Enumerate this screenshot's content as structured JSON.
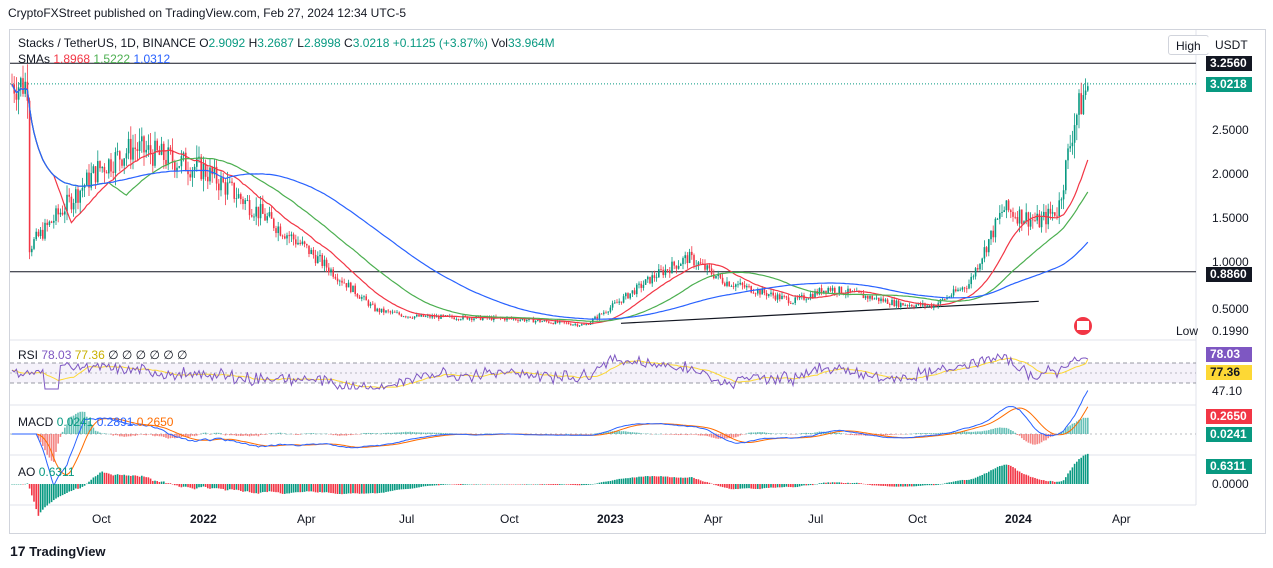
{
  "header": {
    "published": "CryptoFXStreet published on TradingView.com, Feb 27, 2024 12:34 UTC-5"
  },
  "symbol": {
    "name": "Stacks / TetherUS, 1D, BINANCE",
    "o_label": "O",
    "o": "2.9092",
    "h_label": "H",
    "h": "3.2687",
    "l_label": "L",
    "l": "2.8998",
    "c_label": "C",
    "c": "3.0218",
    "change": "+0.1125 (+3.87%)",
    "vol_label": "Vol",
    "vol": "33.964M"
  },
  "smas": {
    "label": "SMAs",
    "v1": "1.8968",
    "v2": "1.5222",
    "v3": "1.0312"
  },
  "buttons": {
    "high": "High",
    "currency": "USDT"
  },
  "price_axis": {
    "ticks": [
      "2.5000",
      "2.0000",
      "1.5000",
      "1.0000",
      "0.5000"
    ],
    "high_tag": "3.2560",
    "last_tag": "3.0218",
    "support_tag": "0.8860",
    "low_label": "Low",
    "low_tag": "0.1990"
  },
  "rsi": {
    "label": "RSI",
    "value": "78.03",
    "ma": "77.36",
    "extras": "∅ ∅ ∅ ∅ ∅ ∅",
    "tag1": "78.03",
    "tag2": "77.36",
    "lower": "47.10"
  },
  "macd": {
    "label": "MACD",
    "v1": "0.0241",
    "v2": "0.2891",
    "v3": "0.2650",
    "tag1": "0.2650",
    "tag2": "0.0241"
  },
  "ao": {
    "label": "AO",
    "value": "0.6311",
    "tag": "0.6311",
    "zero": "0.0000"
  },
  "x_axis": [
    "Oct",
    "2022",
    "Apr",
    "Jul",
    "Oct",
    "2023",
    "Apr",
    "Jul",
    "Oct",
    "2024",
    "Apr"
  ],
  "brand": "TradingView",
  "colors": {
    "up": "#089981",
    "down": "#f23645",
    "sma_fast": "#f23645",
    "sma_mid": "#4caf50",
    "sma_slow": "#2962ff",
    "rsi": "#7e57c2",
    "rsi_ma": "#fdd835",
    "macd": "#2962ff",
    "signal": "#ff6d00"
  },
  "chart_data": {
    "type": "line",
    "title": "Stacks / TetherUS, 1D, BINANCE",
    "xlabel": "",
    "ylabel": "",
    "ylim": [
      0.19,
      3.27
    ],
    "x": [
      "2021-08",
      "2021-10",
      "2021-11",
      "2022-01",
      "2022-04",
      "2022-06",
      "2022-07",
      "2022-10",
      "2022-12",
      "2023-02",
      "2023-03",
      "2023-04",
      "2023-06",
      "2023-07",
      "2023-09",
      "2023-10",
      "2023-11",
      "2023-12",
      "2024-01",
      "2024-02-01",
      "2024-02-15",
      "2024-02-27"
    ],
    "series": [
      {
        "name": "Price",
        "values": [
          1.15,
          2.05,
          2.3,
          2.05,
          1.15,
          0.45,
          0.38,
          0.35,
          0.28,
          0.85,
          1.05,
          0.78,
          0.55,
          0.7,
          0.52,
          0.5,
          0.75,
          1.6,
          1.45,
          1.6,
          2.6,
          3.02
        ]
      }
    ],
    "sma": {
      "v1": 1.8968,
      "v2": 1.5222,
      "v3": 1.0312
    },
    "levels": {
      "high": 3.256,
      "last": 3.0218,
      "support": 0.886,
      "low": 0.199
    },
    "rsi_latest": 78.03,
    "rsi_ma_latest": 77.36,
    "macd_latest": {
      "macd": 0.0241,
      "hist": 0.2891,
      "signal": 0.265
    },
    "ao_latest": 0.6311
  }
}
